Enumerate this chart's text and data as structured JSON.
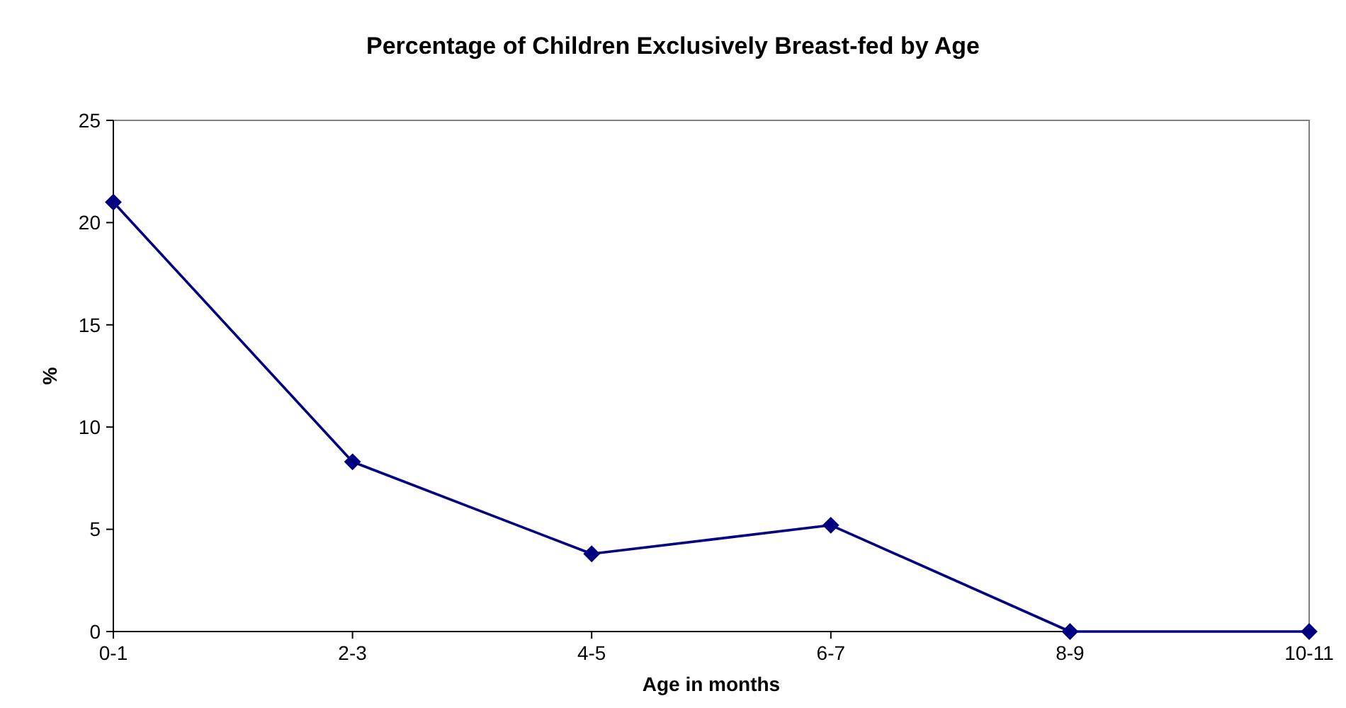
{
  "chart_data": {
    "type": "line",
    "title": "Percentage of Children Exclusively Breast-fed by Age",
    "xlabel": "Age in months",
    "ylabel": "%",
    "categories": [
      "0-1",
      "2-3",
      "4-5",
      "6-7",
      "8-9",
      "10-11"
    ],
    "series": [
      {
        "color": "#000080",
        "values": [
          21.0,
          8.3,
          3.8,
          5.2,
          0,
          0
        ]
      }
    ],
    "ylim": [
      0,
      25
    ],
    "yticks": [
      0,
      5,
      10,
      15,
      20,
      25
    ],
    "grid": false,
    "marker": "diamond",
    "line_style": "solid"
  }
}
